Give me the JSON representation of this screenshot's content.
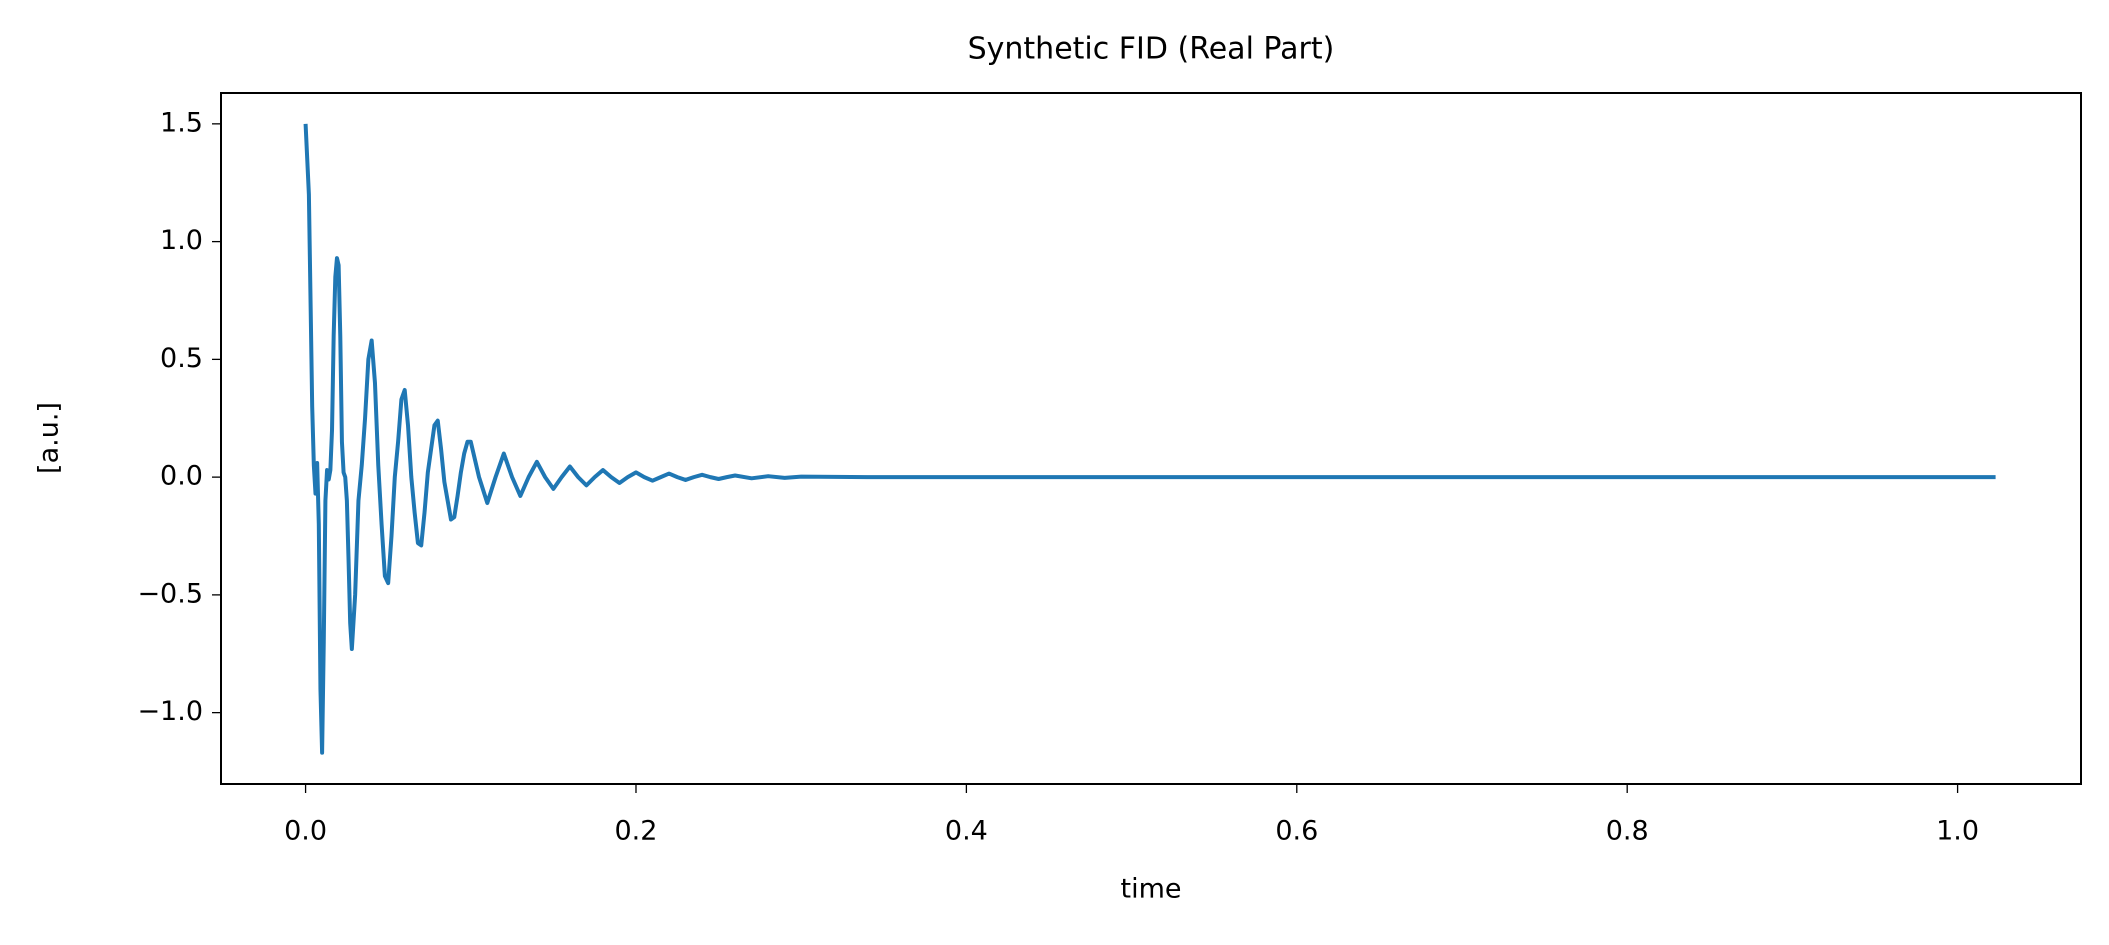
{
  "chart_data": {
    "type": "line",
    "title": "Synthetic FID (Real Part)",
    "x_label": "time",
    "y_label": "[a.u.]",
    "x": [
      0.0,
      0.002,
      0.004,
      0.005,
      0.006,
      0.007,
      0.008,
      0.009,
      0.01,
      0.011,
      0.012,
      0.013,
      0.014,
      0.015,
      0.016,
      0.017,
      0.018,
      0.019,
      0.02,
      0.021,
      0.022,
      0.023,
      0.024,
      0.025,
      0.026,
      0.027,
      0.028,
      0.03,
      0.032,
      0.034,
      0.036,
      0.038,
      0.04,
      0.042,
      0.044,
      0.046,
      0.048,
      0.05,
      0.052,
      0.054,
      0.056,
      0.058,
      0.06,
      0.062,
      0.064,
      0.066,
      0.068,
      0.07,
      0.072,
      0.074,
      0.076,
      0.078,
      0.08,
      0.082,
      0.084,
      0.086,
      0.088,
      0.09,
      0.092,
      0.094,
      0.096,
      0.098,
      0.1,
      0.105,
      0.11,
      0.115,
      0.12,
      0.125,
      0.13,
      0.135,
      0.14,
      0.145,
      0.15,
      0.155,
      0.16,
      0.165,
      0.17,
      0.175,
      0.18,
      0.185,
      0.19,
      0.195,
      0.2,
      0.205,
      0.21,
      0.215,
      0.22,
      0.225,
      0.23,
      0.235,
      0.24,
      0.245,
      0.25,
      0.255,
      0.26,
      0.27,
      0.28,
      0.29,
      0.3,
      0.32,
      0.34,
      0.4,
      0.6,
      0.8,
      1.023
    ],
    "series": [
      {
        "name": "FID",
        "color": "#1f77b4",
        "values": [
          1.5,
          1.2,
          0.3,
          0.05,
          -0.07,
          0.06,
          -0.2,
          -0.9,
          -1.17,
          -0.7,
          -0.1,
          0.03,
          -0.01,
          0.03,
          0.2,
          0.6,
          0.85,
          0.93,
          0.9,
          0.6,
          0.15,
          0.02,
          0.0,
          -0.1,
          -0.35,
          -0.62,
          -0.73,
          -0.5,
          -0.1,
          0.05,
          0.25,
          0.5,
          0.58,
          0.4,
          0.05,
          -0.2,
          -0.42,
          -0.45,
          -0.25,
          0.0,
          0.15,
          0.33,
          0.37,
          0.22,
          0.0,
          -0.15,
          -0.28,
          -0.29,
          -0.15,
          0.02,
          0.12,
          0.22,
          0.24,
          0.12,
          -0.02,
          -0.1,
          -0.18,
          -0.17,
          -0.08,
          0.02,
          0.1,
          0.15,
          0.15,
          0.0,
          -0.11,
          0.0,
          0.1,
          0.0,
          -0.08,
          0.0,
          0.065,
          0.0,
          -0.05,
          0.0,
          0.045,
          0.0,
          -0.035,
          0.0,
          0.03,
          0.0,
          -0.025,
          0.0,
          0.02,
          0.0,
          -0.015,
          0.0,
          0.015,
          0.0,
          -0.012,
          0.0,
          0.01,
          0.0,
          -0.008,
          0.0,
          0.007,
          -0.005,
          0.004,
          -0.003,
          0.002,
          0.001,
          0.0,
          0.0,
          0.0,
          0.0,
          0.0
        ]
      }
    ],
    "xlim": [
      -0.0512,
      1.0747
    ],
    "ylim": [
      -1.303,
      1.631
    ],
    "xticks": [
      {
        "value": 0.0,
        "label": "0.0"
      },
      0.2,
      0.4,
      0.6,
      0.8,
      {
        "value": 1.0,
        "label": "1.0"
      }
    ],
    "yticks": [
      {
        "value": -1.0,
        "label": "−1.0"
      },
      {
        "value": -0.5,
        "label": "−0.5"
      },
      {
        "value": 0.0,
        "label": "0.0"
      },
      0.5,
      {
        "value": 1.0,
        "label": "1.0"
      },
      1.5
    ]
  }
}
